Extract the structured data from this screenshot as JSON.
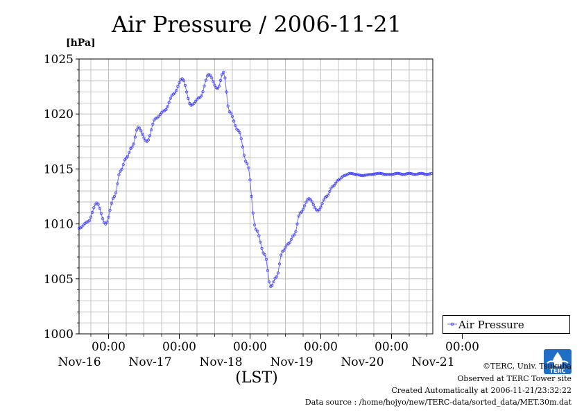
{
  "chart_data": {
    "type": "line",
    "title": "Air Pressure / 2006-11-21",
    "ylabel": "[hPa]",
    "xlabel": "(LST)",
    "ylim": [
      1000,
      1025
    ],
    "yticks": [
      "1000",
      "1005",
      "1010",
      "1015",
      "1020",
      "1025"
    ],
    "xlim_hours": [
      -82,
      38
    ],
    "xticks": [
      {
        "time": "00:00",
        "date": "Nov-16"
      },
      {
        "time": "00:00",
        "date": "Nov-17"
      },
      {
        "time": "00:00",
        "date": "Nov-18"
      },
      {
        "time": "00:00",
        "date": "Nov-19"
      },
      {
        "time": "00:00",
        "date": "Nov-20"
      },
      {
        "time": "00:00",
        "date": "Nov-21"
      }
    ],
    "grid": true,
    "legend_position": "right",
    "series": [
      {
        "name": "Air Pressure",
        "color": "#0000ff",
        "x_hours": [
          -82,
          -79,
          -76,
          -73,
          -70,
          -68,
          -66,
          -64,
          -62,
          -59,
          -56,
          -53,
          -50,
          -47,
          -44,
          -41,
          -38,
          -35,
          -33,
          -31,
          -28,
          -25,
          -22,
          -19,
          -17,
          -15,
          -13,
          -11,
          -9,
          -7,
          -4,
          -1,
          2,
          4,
          6,
          8,
          10,
          12,
          14,
          17,
          20,
          22,
          24,
          26,
          28,
          30,
          32,
          34,
          36,
          38
        ],
        "values": [
          1009.6,
          1010.2,
          1011.9,
          1010.0,
          1012.5,
          1014.8,
          1016.0,
          1017.0,
          1018.8,
          1017.5,
          1019.6,
          1020.3,
          1021.8,
          1023.2,
          1020.8,
          1021.5,
          1023.6,
          1022.3,
          1023.8,
          1020.2,
          1018.5,
          1015.5,
          1009.5,
          1007.2,
          1004.3,
          1005.2,
          1007.5,
          1008.2,
          1009.0,
          1011.0,
          1012.3,
          1011.2,
          1012.5,
          1013.4,
          1014.0,
          1014.4,
          1014.6,
          1014.5,
          1014.4,
          1014.5,
          1014.6,
          1014.5,
          1014.5,
          1014.6,
          1014.5,
          1014.6,
          1014.5,
          1014.6,
          1014.5,
          1014.6
        ]
      }
    ]
  },
  "credits": {
    "copyright": "©TERC, Univ. Tsukuba",
    "observed": "Observed at TERC Tower site",
    "created": "Created Automatically at 2006-11-21/23:32:22",
    "source": "Data source : /home/hojyo/new/TERC-data/sorted_data/MET.30m.dat",
    "logo_text": "TERC"
  }
}
